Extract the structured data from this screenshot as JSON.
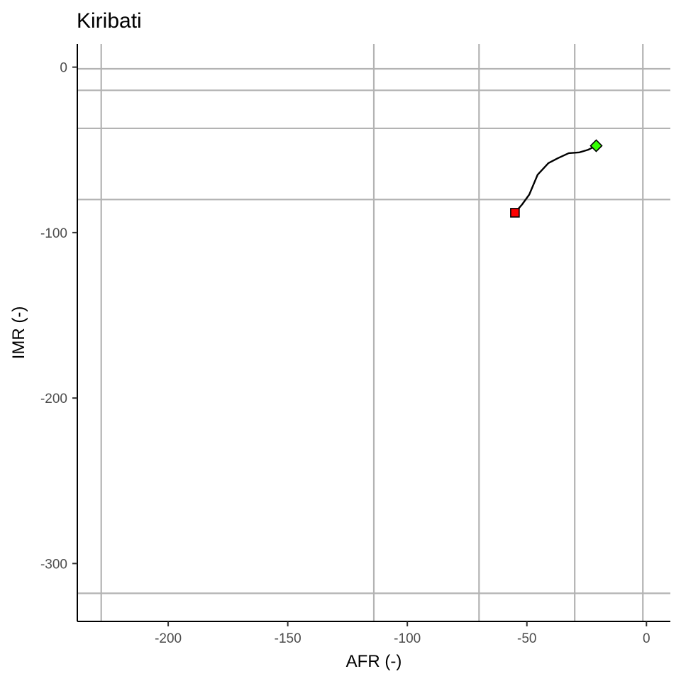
{
  "chart_data": {
    "type": "line",
    "title": "Kiribati",
    "xlabel": "AFR (-)",
    "ylabel": "IMR (-)",
    "xlim": [
      -238,
      10
    ],
    "ylim": [
      -335,
      14
    ],
    "x_ticks": [
      -200,
      -150,
      -100,
      -50,
      0
    ],
    "y_ticks": [
      0,
      -100,
      -200,
      -300
    ],
    "grid": false,
    "reference_lines": {
      "vertical": [
        -228,
        -114,
        -70,
        -30,
        -1.5
      ],
      "horizontal": [
        -1,
        -14,
        -37,
        -80,
        -318
      ]
    },
    "series": [
      {
        "x": [
          -55,
          -52,
          -49,
          -45.5,
          -41,
          -37,
          -32.5,
          -28,
          -24.5,
          -21
        ],
        "y": [
          -88,
          -83,
          -77,
          -65,
          -58,
          -55,
          -52,
          -51.5,
          -50,
          -47.5
        ]
      }
    ],
    "start_marker": {
      "x": -55,
      "y": -88,
      "shape": "square",
      "color": "#ff0000"
    },
    "end_marker": {
      "x": -21,
      "y": -47.5,
      "shape": "diamond",
      "color": "#33ff00"
    },
    "colors": {
      "line": "#000000",
      "reference": "#b3b3b3",
      "axis": "#000000",
      "tick_text": "#4d4d4d"
    }
  }
}
